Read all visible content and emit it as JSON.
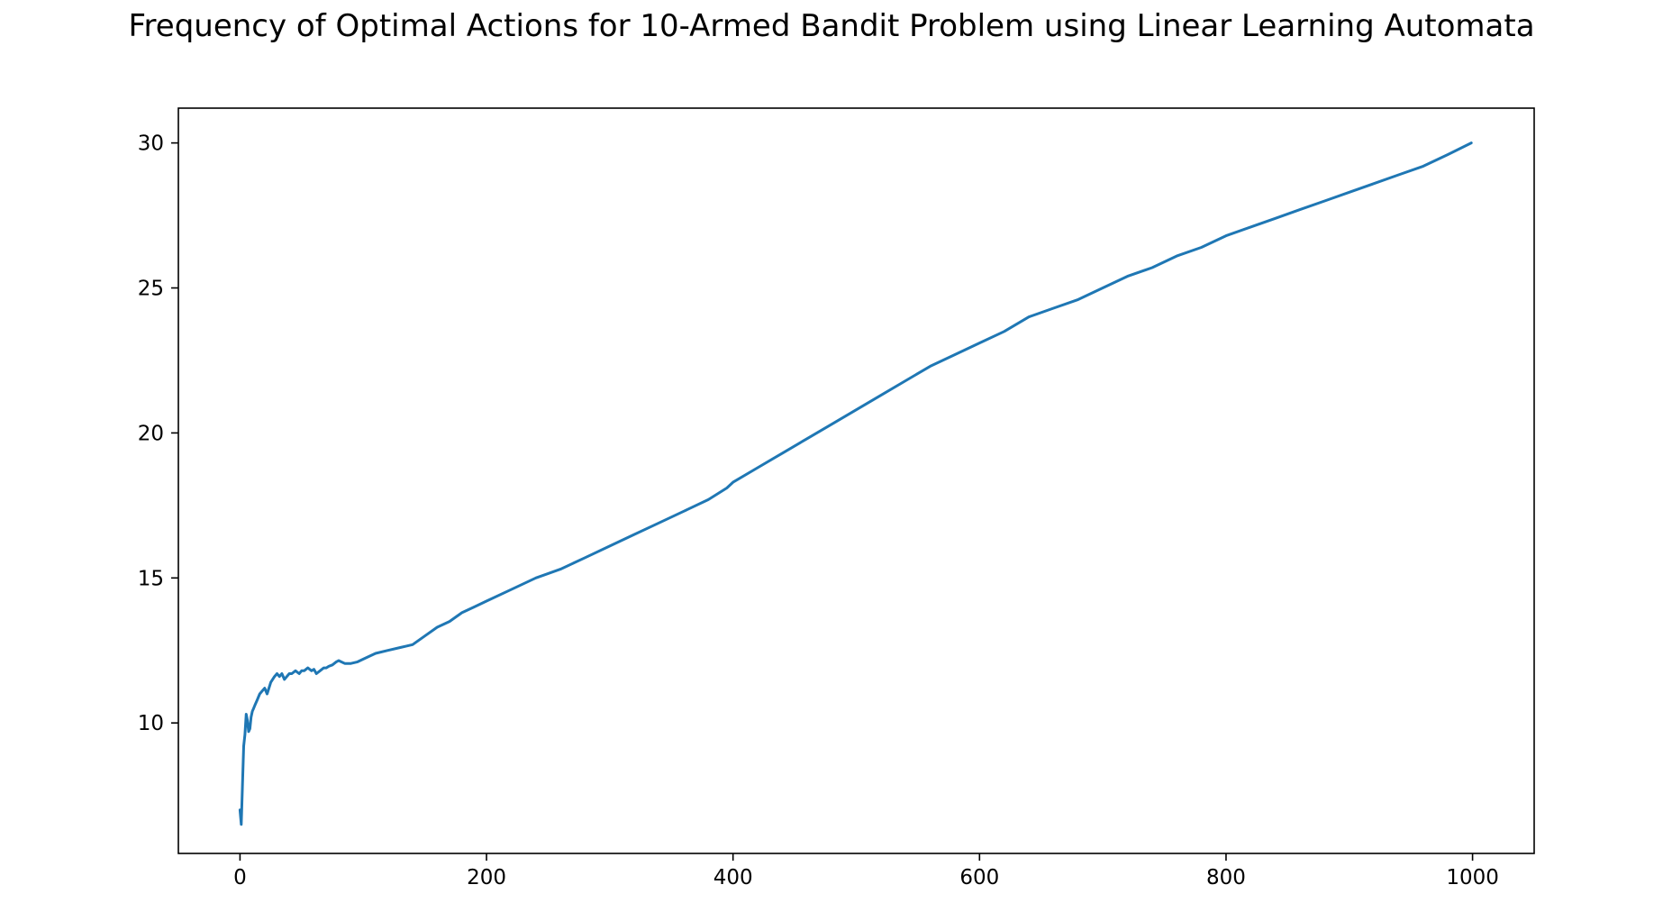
{
  "chart_data": {
    "type": "line",
    "title": "Frequency of Optimal Actions for 10-Armed Bandit Problem using Linear Learning Automata",
    "xlabel": "",
    "ylabel": "",
    "xlim": [
      -50,
      1050
    ],
    "ylim": [
      5.5,
      31.2
    ],
    "grid": false,
    "legend": "none",
    "x_ticks": [
      0,
      200,
      400,
      600,
      800,
      1000
    ],
    "y_ticks": [
      10,
      15,
      20,
      25,
      30
    ],
    "x_tick_labels": [
      "0",
      "200",
      "400",
      "600",
      "800",
      "1000"
    ],
    "y_tick_labels": [
      "10",
      "15",
      "20",
      "25",
      "30"
    ],
    "series": [
      {
        "color": "#1f77b4",
        "x": [
          0,
          1,
          2,
          3,
          4,
          5,
          6,
          7,
          8,
          9,
          10,
          11,
          12,
          14,
          16,
          18,
          20,
          22,
          25,
          28,
          30,
          32,
          34,
          36,
          38,
          40,
          42,
          45,
          48,
          50,
          52,
          55,
          58,
          60,
          62,
          65,
          68,
          70,
          72,
          75,
          78,
          80,
          85,
          90,
          95,
          100,
          110,
          120,
          130,
          135,
          140,
          150,
          160,
          170,
          180,
          190,
          200,
          220,
          240,
          260,
          280,
          300,
          320,
          340,
          360,
          380,
          395,
          400,
          420,
          440,
          460,
          480,
          500,
          520,
          540,
          560,
          580,
          600,
          620,
          640,
          660,
          680,
          700,
          720,
          740,
          760,
          780,
          800,
          820,
          840,
          860,
          880,
          900,
          920,
          940,
          960,
          980,
          999
        ],
        "y": [
          7.0,
          6.5,
          7.8,
          9.2,
          9.6,
          10.3,
          10.1,
          9.7,
          9.8,
          10.2,
          10.4,
          10.5,
          10.6,
          10.8,
          11.0,
          11.1,
          11.2,
          11.0,
          11.4,
          11.6,
          11.7,
          11.6,
          11.7,
          11.5,
          11.6,
          11.7,
          11.7,
          11.8,
          11.7,
          11.8,
          11.8,
          11.9,
          11.8,
          11.85,
          11.7,
          11.8,
          11.9,
          11.9,
          11.95,
          12.0,
          12.1,
          12.15,
          12.05,
          12.05,
          12.1,
          12.2,
          12.4,
          12.5,
          12.6,
          12.65,
          12.7,
          13.0,
          13.3,
          13.5,
          13.8,
          14.0,
          14.2,
          14.6,
          15.0,
          15.3,
          15.7,
          16.1,
          16.5,
          16.9,
          17.3,
          17.7,
          18.1,
          18.3,
          18.8,
          19.3,
          19.8,
          20.3,
          20.8,
          21.3,
          21.8,
          22.3,
          22.7,
          23.1,
          23.5,
          24.0,
          24.3,
          24.6,
          25.0,
          25.4,
          25.7,
          26.1,
          26.4,
          26.8,
          27.1,
          27.4,
          27.7,
          28.0,
          28.3,
          28.6,
          28.9,
          29.2,
          29.6,
          30.0
        ]
      }
    ]
  }
}
